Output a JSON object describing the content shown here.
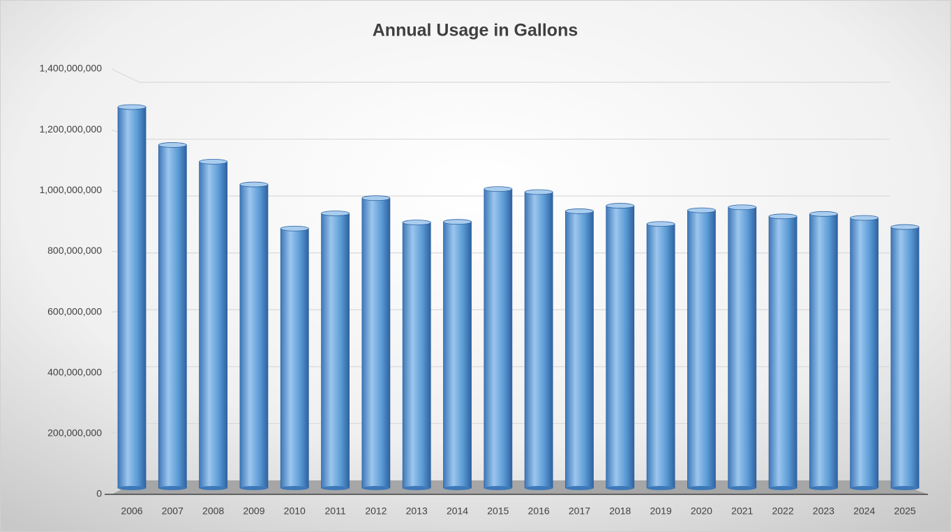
{
  "chart_data": {
    "type": "bar",
    "title": "Annual Usage in Gallons",
    "categories": [
      "2006",
      "2007",
      "2008",
      "2009",
      "2010",
      "2011",
      "2012",
      "2013",
      "2014",
      "2015",
      "2016",
      "2017",
      "2018",
      "2019",
      "2020",
      "2021",
      "2022",
      "2023",
      "2024",
      "2025"
    ],
    "values": [
      1275000000,
      1150000000,
      1095000000,
      1020000000,
      875000000,
      925000000,
      975000000,
      895000000,
      897000000,
      1005000000,
      995000000,
      932000000,
      950000000,
      890000000,
      935000000,
      945000000,
      915000000,
      923000000,
      910000000,
      880000000
    ],
    "color": "#5b9bd5",
    "ylim": [
      0,
      1400000000
    ],
    "yticks": [
      0,
      {
        "value": 200000000,
        "label": "200,000,000"
      },
      {
        "value": 400000000,
        "label": "400,000,000"
      },
      {
        "value": 600000000,
        "label": "600,000,000"
      },
      {
        "value": 800000000,
        "label": "800,000,000"
      },
      {
        "value": 1000000000,
        "label": "1,000,000,000"
      },
      {
        "value": 1200000000,
        "label": "1,200,000,000"
      },
      {
        "value": 1400000000,
        "label": "1,400,000,000"
      }
    ],
    "grid": true
  }
}
